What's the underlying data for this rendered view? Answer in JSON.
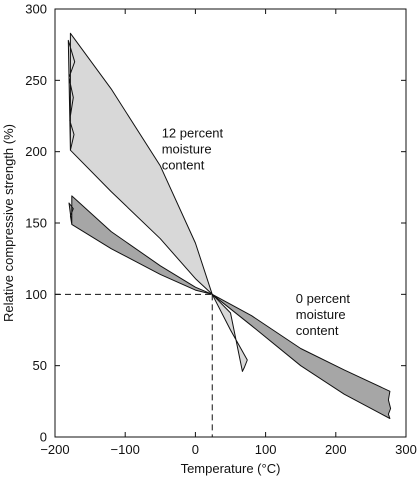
{
  "chart_data": {
    "type": "area",
    "xlabel": "Temperature (°C)",
    "ylabel": "Relative compressive strength (%)",
    "xlim": [
      -200,
      300
    ],
    "ylim": [
      0,
      300
    ],
    "x_ticks": [
      -200,
      -100,
      0,
      100,
      200,
      300
    ],
    "y_ticks": [
      0,
      50,
      100,
      150,
      200,
      250,
      300
    ],
    "x_tick_labels": [
      "−200",
      "−100",
      "0",
      "100",
      "200",
      "300"
    ],
    "y_tick_labels": [
      "0",
      "50",
      "100",
      "150",
      "200",
      "250",
      "300"
    ],
    "grid": false,
    "legend": "none",
    "reference_point": {
      "x": 24,
      "y": 100
    },
    "series": [
      {
        "label": "12 percent moisture content",
        "fill": "#d8d8d8",
        "upper": [
          [
            -178,
            283
          ],
          [
            -120,
            244
          ],
          [
            -50,
            190
          ],
          [
            0,
            136
          ],
          [
            24,
            100
          ],
          [
            50,
            75
          ],
          [
            74,
            54
          ]
        ],
        "lower": [
          [
            -178,
            201
          ],
          [
            -120,
            172
          ],
          [
            -50,
            139
          ],
          [
            0,
            111
          ],
          [
            24,
            100
          ],
          [
            50,
            87
          ],
          [
            67,
            46
          ]
        ],
        "left_edge": [
          [
            -178,
            283
          ],
          [
            -181,
            278
          ],
          [
            -172,
            263
          ],
          [
            -180,
            252
          ],
          [
            -174,
            238
          ],
          [
            -179,
            222
          ],
          [
            -173,
            212
          ],
          [
            -178,
            201
          ]
        ],
        "right_edge": [
          [
            74,
            54
          ],
          [
            70,
            49
          ],
          [
            67,
            46
          ]
        ]
      },
      {
        "label": "0 percent moisture content",
        "fill": "#a6a6a6",
        "upper": [
          [
            -176,
            169
          ],
          [
            -120,
            144
          ],
          [
            -50,
            120
          ],
          [
            0,
            105
          ],
          [
            24,
            100
          ],
          [
            80,
            85
          ],
          [
            150,
            62
          ],
          [
            212,
            47
          ],
          [
            277,
            32
          ]
        ],
        "lower": [
          [
            -176,
            149
          ],
          [
            -120,
            132
          ],
          [
            -50,
            114
          ],
          [
            0,
            103
          ],
          [
            24,
            100
          ],
          [
            80,
            78
          ],
          [
            150,
            50
          ],
          [
            212,
            30
          ],
          [
            277,
            13
          ]
        ],
        "left_edge": [
          [
            -176,
            169
          ],
          [
            -180,
            164
          ],
          [
            -174,
            160
          ],
          [
            -178,
            155
          ],
          [
            -176,
            149
          ]
        ],
        "right_edge": [
          [
            277,
            32
          ],
          [
            275,
            26
          ],
          [
            278,
            20
          ],
          [
            275,
            16
          ],
          [
            277,
            13
          ]
        ]
      }
    ],
    "annotations": [
      {
        "lines": [
          "12 percent",
          "moisture",
          "content"
        ],
        "x": -48,
        "y": 210
      },
      {
        "lines": [
          "0 percent",
          "moisture",
          "content"
        ],
        "x": 143,
        "y": 94
      }
    ]
  }
}
